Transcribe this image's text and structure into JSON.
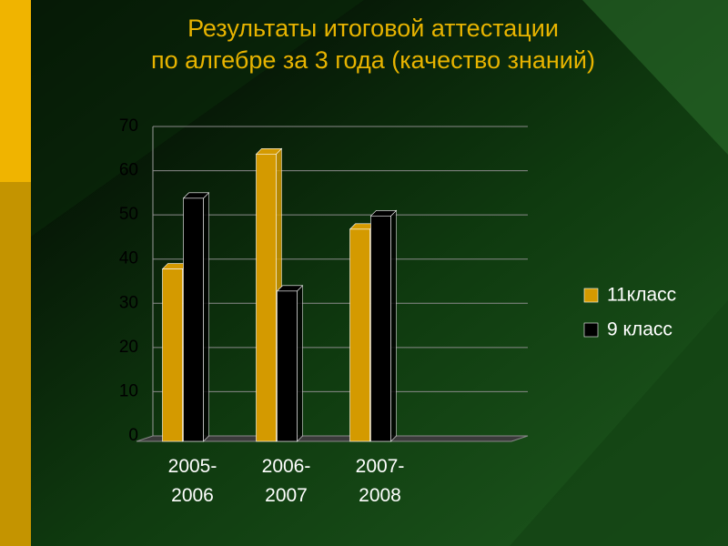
{
  "chart_data": {
    "type": "bar",
    "title": [
      "Результаты итоговой аттестации",
      "по алгебре за 3 года (качество знаний)"
    ],
    "categories": [
      "2005-2006",
      "2006-2007",
      "2007-2008",
      null
    ],
    "series": [
      {
        "name": "11класс",
        "color": "#d49a00",
        "values": [
          39,
          65,
          48,
          null
        ]
      },
      {
        "name": "9 класс",
        "color": "#000000",
        "values": [
          55,
          34,
          51,
          null
        ]
      }
    ],
    "ylim": [
      0,
      70
    ],
    "yticks": [
      0,
      10,
      20,
      30,
      40,
      50,
      60,
      70
    ],
    "grid": true,
    "legend": "right"
  }
}
